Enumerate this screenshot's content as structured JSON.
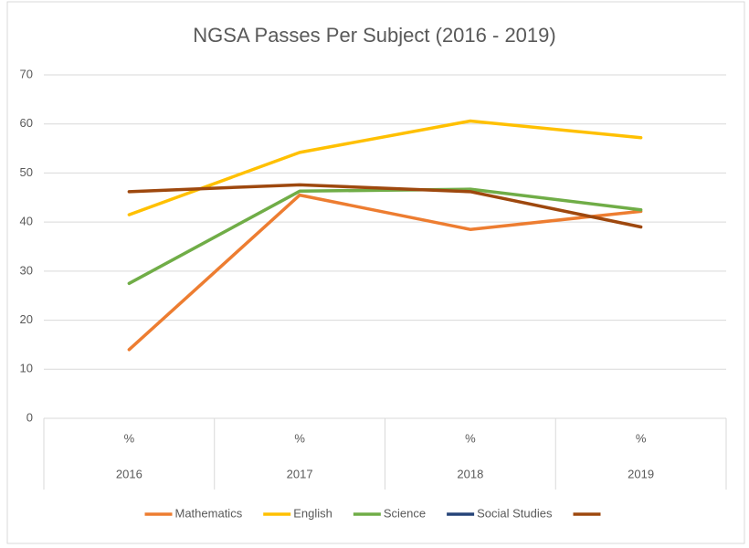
{
  "chart_data": {
    "type": "line",
    "title": "NGSA Passes Per Subject (2016 - 2019)",
    "categories": [
      "2016",
      "2017",
      "2018",
      "2019"
    ],
    "category_sublabels": [
      "%",
      "%",
      "%",
      "%"
    ],
    "series": [
      {
        "name": "Mathematics",
        "color": "#ed7d31",
        "values": [
          14,
          45.5,
          38.5,
          42.2
        ]
      },
      {
        "name": "English",
        "color": "#ffc000",
        "values": [
          41.5,
          54.2,
          60.6,
          57.2
        ]
      },
      {
        "name": "Science",
        "color": "#70ad47",
        "values": [
          27.5,
          46.3,
          46.7,
          42.5
        ]
      },
      {
        "name": "Social Studies",
        "color": "#264478",
        "values": [
          null,
          null,
          null,
          null
        ]
      },
      {
        "color": "#9e480e",
        "values": [
          46.2,
          47.6,
          46.2,
          39
        ]
      }
    ],
    "ylim": [
      0,
      70
    ],
    "yticks": [
      0,
      10,
      20,
      30,
      40,
      50,
      60,
      70
    ],
    "grid": true,
    "legend": "bottom"
  }
}
